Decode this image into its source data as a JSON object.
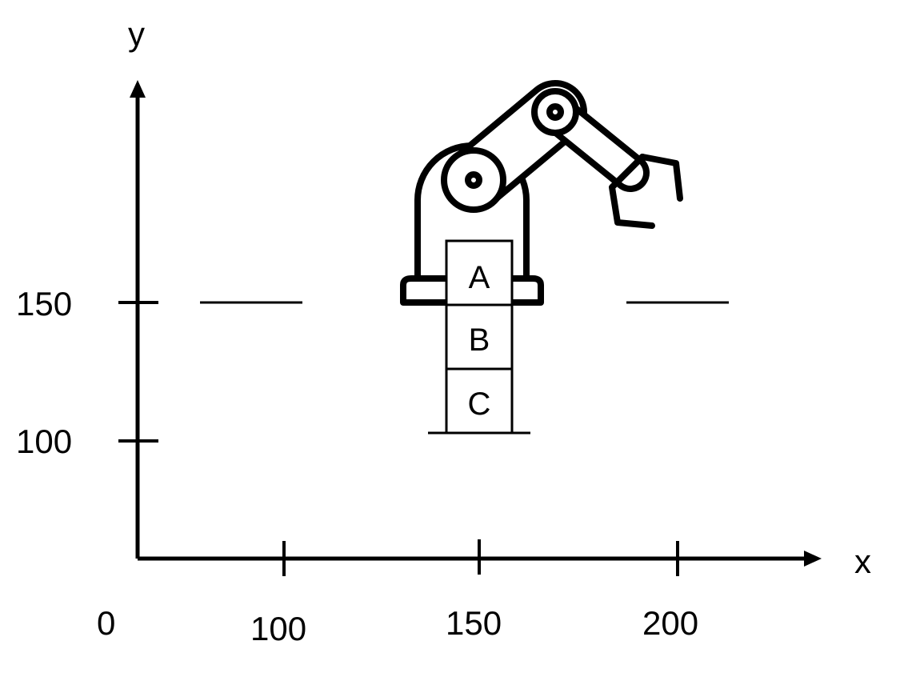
{
  "axes": {
    "x_label": "x",
    "y_label": "y",
    "origin_label": "0",
    "x_ticks": [
      "100",
      "150",
      "200"
    ],
    "y_ticks": [
      "100",
      "150"
    ]
  },
  "blocks": [
    {
      "label": "A"
    },
    {
      "label": "B"
    },
    {
      "label": "C"
    }
  ],
  "colors": {
    "stroke": "#000000",
    "background": "#ffffff"
  },
  "icons": {
    "robot": "robotic-arm-icon"
  }
}
